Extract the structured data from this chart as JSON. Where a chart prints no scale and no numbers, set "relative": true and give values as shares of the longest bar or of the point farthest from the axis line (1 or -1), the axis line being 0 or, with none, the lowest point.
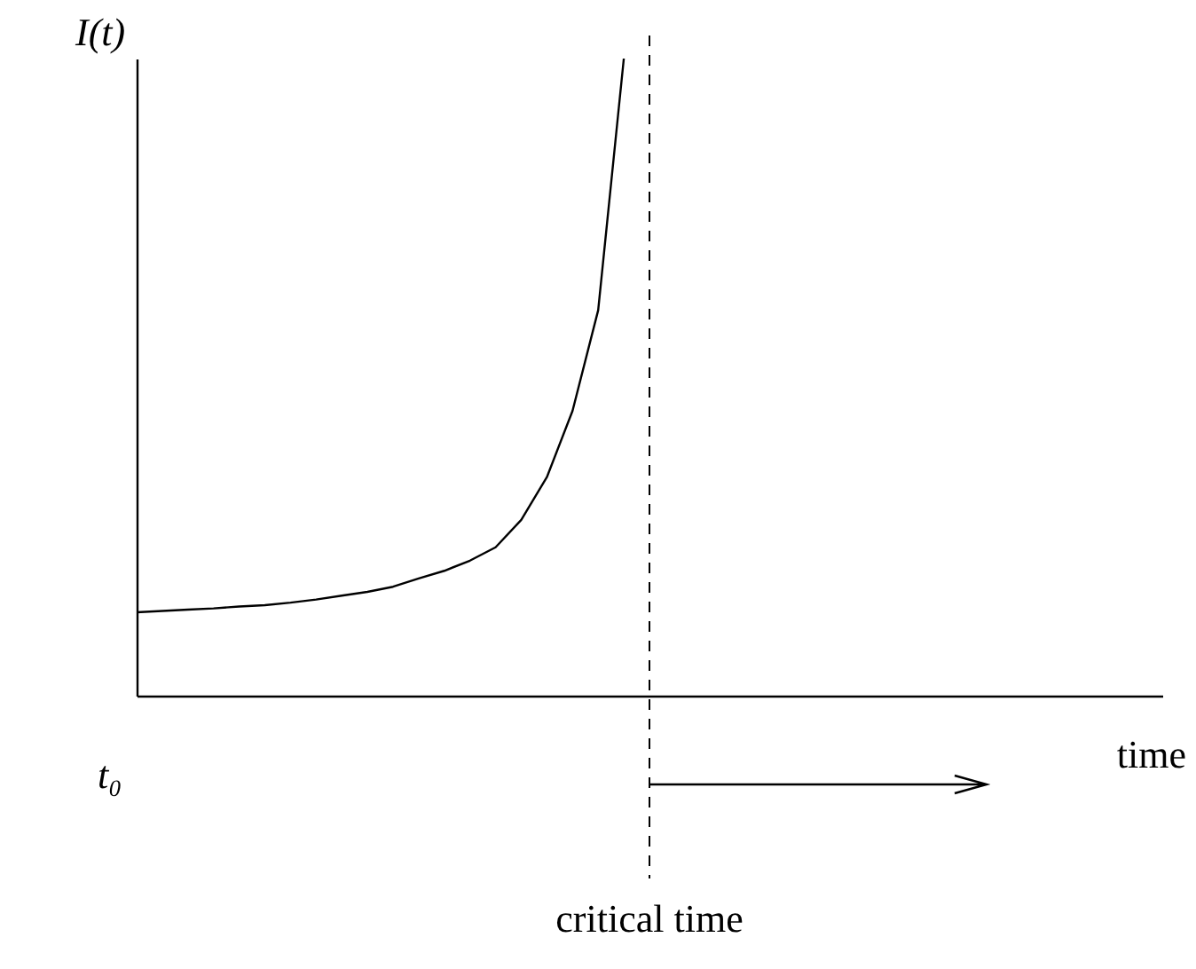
{
  "chart_data": {
    "type": "line",
    "relative": true,
    "ylabel": "I(t)",
    "xlabel": "time",
    "categories": [
      null,
      null,
      null,
      null,
      null,
      null,
      null,
      null,
      null,
      null,
      null,
      null,
      null,
      null,
      null,
      null,
      null,
      null,
      null,
      null,
      null,
      null,
      null,
      null,
      null,
      null,
      null,
      null,
      null,
      null,
      null,
      null,
      null,
      null,
      null,
      null,
      null,
      null,
      null,
      null
    ],
    "series": [
      {
        "color": "#000000",
        "values": [
          0.131,
          0.133,
          0.135,
          0.137,
          0.14,
          0.142,
          0.146,
          0.151,
          0.157,
          0.163,
          0.171,
          0.184,
          0.196,
          0.212,
          0.233,
          0.276,
          0.343,
          0.447,
          0.605,
          1,
          null,
          null,
          null,
          null,
          null,
          null,
          null,
          null,
          null,
          null,
          null,
          null,
          null,
          null,
          null,
          null,
          null,
          null,
          null,
          null
        ]
      }
    ],
    "annotations": [
      "t₀"
    ],
    "ref_lines": [
      {
        "axis": "x",
        "label": "critical time",
        "line_style": "dashed",
        "color": "#000000"
      }
    ],
    "grid": false,
    "marker": "none",
    "line_style": "solid"
  }
}
